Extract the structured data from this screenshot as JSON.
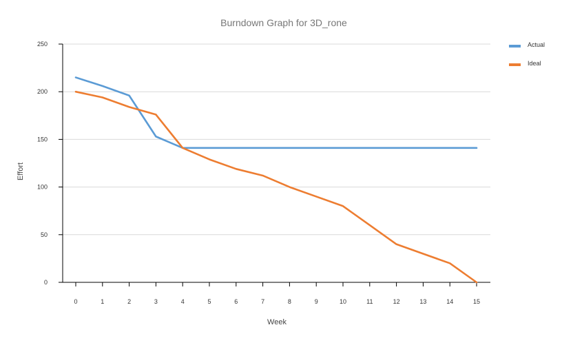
{
  "chart_data": {
    "type": "line",
    "title": "Burndown Graph for 3D_rone",
    "xlabel": "Week",
    "ylabel": "Effort",
    "x": [
      0,
      1,
      2,
      3,
      4,
      5,
      6,
      7,
      8,
      9,
      10,
      11,
      12,
      13,
      14,
      15
    ],
    "xlim": [
      0,
      15
    ],
    "ylim": [
      0,
      250
    ],
    "yticks": [
      0,
      50,
      100,
      150,
      200,
      250
    ],
    "grid": "horizontal",
    "legend_position": "top-right",
    "series": [
      {
        "name": "Actual",
        "color": "#5b9bd5",
        "values": [
          215,
          206,
          196,
          153,
          141,
          141,
          141,
          141,
          141,
          141,
          141,
          141,
          141,
          141,
          141,
          141
        ]
      },
      {
        "name": "Ideal",
        "color": "#ed7d31",
        "values": [
          200,
          194,
          184,
          176,
          141,
          129,
          119,
          112,
          100,
          90,
          80,
          60,
          40,
          30,
          20,
          0
        ]
      }
    ]
  }
}
